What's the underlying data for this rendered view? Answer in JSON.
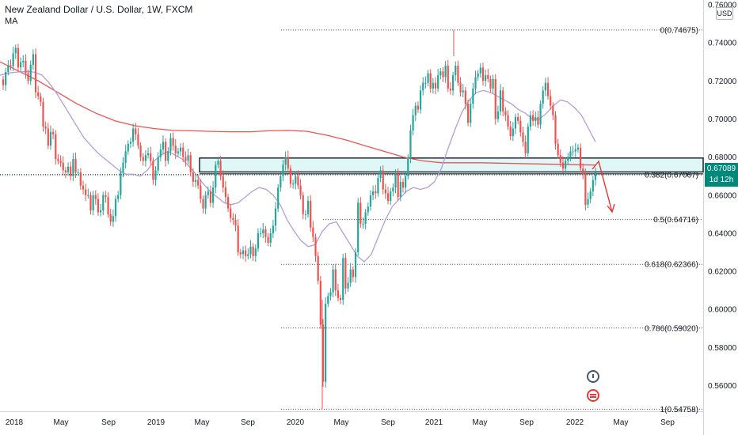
{
  "header": {
    "title": "New Zealand Dollar / U.S. Dollar, 1W, FXCM",
    "indicator": "MA"
  },
  "currency": "USD",
  "last_price": {
    "value": "0.67089",
    "countdown": "1d 12h",
    "color": "#00897b"
  },
  "colors": {
    "up": "#26a69a",
    "down": "#ef5350",
    "ma_fast": "#b39ddb",
    "ma_slow": "#ef5350",
    "zone_fill": "#e0f7f7",
    "axis_text": "#131722",
    "grid": "#f0f3fa"
  },
  "icons": [
    "clock-event-icon",
    "us-flag-event-icon"
  ],
  "chart_data": {
    "type": "candlestick",
    "x_ticks": [
      "2018",
      "May",
      "Sep",
      "2019",
      "May",
      "Sep",
      "2020",
      "May",
      "Sep",
      "2021",
      "May",
      "Sep",
      "2022",
      "May",
      "Sep"
    ],
    "y_ticks": [
      "0.76000",
      "0.74000",
      "0.72000",
      "0.70000",
      "0.68000",
      "0.66000",
      "0.64000",
      "0.62000",
      "0.60000",
      "0.58000",
      "0.56000"
    ],
    "ylim": [
      0.5465,
      0.7625
    ],
    "fib_levels": [
      {
        "label": "0(0.74675)",
        "value": 0.74675
      },
      {
        "label": "0.382(0.67067)",
        "value": 0.67067
      },
      {
        "label": "0.5(0.64716)",
        "value": 0.64716
      },
      {
        "label": "0.618(0.62366)",
        "value": 0.62366
      },
      {
        "label": "0.786(0.59020)",
        "value": 0.5902
      },
      {
        "label": "1(0.54758)",
        "value": 0.54758
      }
    ],
    "zone": {
      "top": 0.6795,
      "bottom": 0.6722
    },
    "support_line": 0.6712,
    "last_price": 0.67089,
    "closes": [
      0.7178,
      0.7247,
      0.7283,
      0.7277,
      0.7345,
      0.7373,
      0.7271,
      0.7298,
      0.7306,
      0.7241,
      0.72,
      0.7285,
      0.734,
      0.714,
      0.712,
      0.709,
      0.696,
      0.695,
      0.686,
      0.6932,
      0.692,
      0.679,
      0.678,
      0.677,
      0.673,
      0.672,
      0.675,
      0.67,
      0.679,
      0.672,
      0.672,
      0.665,
      0.663,
      0.66,
      0.66,
      0.652,
      0.66,
      0.658,
      0.651,
      0.652,
      0.66,
      0.659,
      0.65,
      0.646,
      0.649,
      0.658,
      0.66,
      0.672,
      0.677,
      0.683,
      0.687,
      0.688,
      0.695,
      0.692,
      0.686,
      0.68,
      0.678,
      0.681,
      0.682,
      0.678,
      0.668,
      0.673,
      0.68,
      0.684,
      0.688,
      0.678,
      0.683,
      0.69,
      0.686,
      0.682,
      0.683,
      0.685,
      0.68,
      0.678,
      0.681,
      0.672,
      0.667,
      0.668,
      0.665,
      0.658,
      0.653,
      0.66,
      0.662,
      0.656,
      0.664,
      0.676,
      0.678,
      0.67,
      0.664,
      0.659,
      0.653,
      0.648,
      0.647,
      0.644,
      0.63,
      0.629,
      0.631,
      0.628,
      0.629,
      0.633,
      0.628,
      0.632,
      0.64,
      0.64,
      0.642,
      0.638,
      0.635,
      0.64,
      0.644,
      0.653,
      0.664,
      0.67,
      0.676,
      0.68,
      0.674,
      0.666,
      0.666,
      0.67,
      0.665,
      0.66,
      0.65,
      0.65,
      0.657,
      0.643,
      0.638,
      0.628,
      0.615,
      0.592,
      0.562,
      0.603,
      0.607,
      0.609,
      0.621,
      0.61,
      0.606,
      0.605,
      0.627,
      0.611,
      0.614,
      0.621,
      0.617,
      0.63,
      0.656,
      0.645,
      0.645,
      0.651,
      0.654,
      0.66,
      0.662,
      0.661,
      0.669,
      0.673,
      0.663,
      0.661,
      0.657,
      0.662,
      0.664,
      0.671,
      0.659,
      0.667,
      0.664,
      0.67,
      0.679,
      0.694,
      0.702,
      0.707,
      0.705,
      0.715,
      0.719,
      0.719,
      0.724,
      0.716,
      0.719,
      0.716,
      0.723,
      0.725,
      0.722,
      0.728,
      0.716,
      0.715,
      0.723,
      0.728,
      0.719,
      0.714,
      0.715,
      0.708,
      0.698,
      0.708,
      0.716,
      0.722,
      0.724,
      0.727,
      0.72,
      0.723,
      0.721,
      0.716,
      0.721,
      0.7,
      0.704,
      0.715,
      0.704,
      0.702,
      0.696,
      0.691,
      0.695,
      0.701,
      0.699,
      0.693,
      0.688,
      0.682,
      0.696,
      0.702,
      0.699,
      0.701,
      0.697,
      0.708,
      0.715,
      0.719,
      0.712,
      0.707,
      0.702,
      0.687,
      0.681,
      0.677,
      0.674,
      0.678,
      0.68,
      0.683,
      0.683,
      0.684,
      0.685,
      0.674,
      0.671,
      0.655,
      0.658,
      0.662,
      0.668,
      0.672
    ],
    "ma_fast": [
      0.723,
      0.724,
      0.7245,
      0.7248,
      0.725,
      0.7245,
      0.723,
      0.719,
      0.714,
      0.708,
      0.702,
      0.696,
      0.69,
      0.686,
      0.682,
      0.679,
      0.676,
      0.673,
      0.671,
      0.671,
      0.67,
      0.673,
      0.678,
      0.681,
      0.683,
      0.681,
      0.679,
      0.675,
      0.671,
      0.666,
      0.662,
      0.659,
      0.656,
      0.655,
      0.656,
      0.659,
      0.662,
      0.664,
      0.663,
      0.66,
      0.655,
      0.647,
      0.641,
      0.636,
      0.633,
      0.634,
      0.641,
      0.645,
      0.646,
      0.64,
      0.634,
      0.628,
      0.625,
      0.629,
      0.638,
      0.647,
      0.654,
      0.658,
      0.662,
      0.664,
      0.663,
      0.664,
      0.667,
      0.674,
      0.685,
      0.695,
      0.704,
      0.71,
      0.714,
      0.715,
      0.714,
      0.712,
      0.71,
      0.708,
      0.705,
      0.703,
      0.7,
      0.7,
      0.703,
      0.707,
      0.71,
      0.709,
      0.706,
      0.702,
      0.695,
      0.688
    ],
    "ma_slow": [
      0.73,
      0.725,
      0.72,
      0.714,
      0.708,
      0.703,
      0.699,
      0.6965,
      0.695,
      0.694,
      0.6938,
      0.6935,
      0.6933,
      0.6933,
      0.6938,
      0.694,
      0.6935,
      0.6915,
      0.689,
      0.686,
      0.683,
      0.68,
      0.678,
      0.677,
      0.677,
      0.677,
      0.6768,
      0.6766,
      0.6764,
      0.6762,
      0.676,
      0.6758
    ]
  }
}
